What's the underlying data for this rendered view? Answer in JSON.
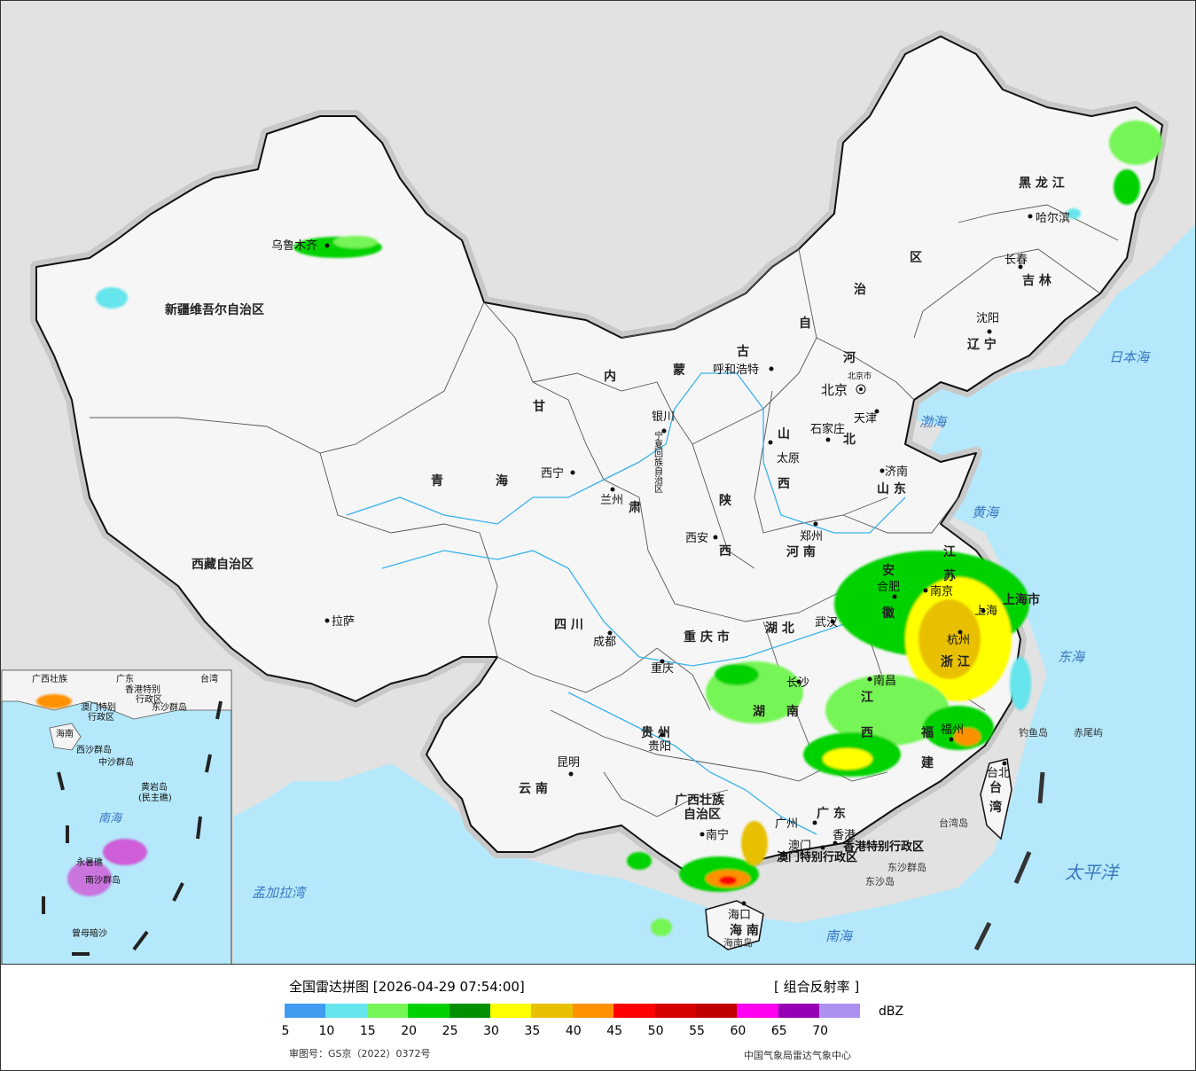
{
  "legend": {
    "title": "全国雷达拼图 [2026-04-29 07:54:00]",
    "product": "[ 组合反射率 ]",
    "unit": "dBZ",
    "approval": "审图号：GS京（2022）0372号",
    "source": "中国气象局雷达气象中心",
    "colors": [
      "#3f9cf0",
      "#66e5ec",
      "#76f556",
      "#00d200",
      "#009000",
      "#ffff00",
      "#e8c000",
      "#ff9000",
      "#ff0000",
      "#d70000",
      "#c00000",
      "#ff00f0",
      "#9600b4",
      "#ad90f0"
    ],
    "ticks": [
      "5",
      "10",
      "15",
      "20",
      "25",
      "30",
      "35",
      "40",
      "45",
      "50",
      "55",
      "60",
      "65",
      "70"
    ]
  },
  "map": {
    "provinces": {
      "xinjiang": "新疆维吾尔自治区",
      "xizang": "西藏自治区",
      "qinghai_1": "青",
      "qinghai_2": "海",
      "gansu_1": "甘",
      "gansu_2": "肃",
      "neimenggu_1": "内",
      "neimenggu_2": "蒙",
      "neimenggu_3": "古",
      "neimenggu_4": "自",
      "neimenggu_5": "治",
      "neimenggu_6": "区",
      "heilongjiang": "黑 龙 江",
      "jilin": "吉 林",
      "liaoning": "辽 宁",
      "hebei_1": "河",
      "hebei_2": "北",
      "shanxi_1": "山",
      "shanxi_2": "西",
      "shandong": "山 东",
      "henan": "河 南",
      "shaanxi_1": "陕",
      "shaanxi_2": "西",
      "sichuan": "四 川",
      "chongqing": "重 庆 市",
      "hubei": "湖 北",
      "hunan_1": "湖",
      "hunan_2": "南",
      "jiangxi_1": "江",
      "jiangxi_2": "西",
      "anhui_1": "安",
      "anhui_2": "徽",
      "jiangsu_1": "江",
      "jiangsu_2": "苏",
      "zhejiang": "浙 江",
      "fujian_1": "福",
      "fujian_2": "建",
      "guizhou": "贵 州",
      "yunnan": "云 南",
      "guangxi_1": "广西壮族",
      "guangxi_2": "自治区",
      "guangdong": "广 东",
      "hainan": "海 南",
      "taiwan_1": "台",
      "taiwan_2": "湾",
      "shanghai": "上海市",
      "ningxia": "宁夏回族自治区",
      "hongkong": "香港特别行政区",
      "macau": "澳门特别行政区"
    },
    "cities": {
      "urumqi": "乌鲁木齐",
      "lhasa": "拉萨",
      "xining": "西宁",
      "lanzhou": "兰州",
      "yinchuan": "银川",
      "hohhot": "呼和浩特",
      "beijing": "北京",
      "beijing_small": "北京市",
      "tianjin": "天津",
      "shijiazhuang": "石家庄",
      "taiyuan": "太原",
      "jinan": "济南",
      "zhengzhou": "郑州",
      "xian": "西安",
      "chengdu": "成都",
      "chongqing": "重庆",
      "wuhan": "武汉",
      "changsha": "长沙",
      "nanchang": "南昌",
      "hefei": "合肥",
      "nanjing": "南京",
      "shanghai": "上海",
      "hangzhou": "杭州",
      "fuzhou": "福州",
      "guiyang": "贵阳",
      "kunming": "昆明",
      "nanning": "南宁",
      "guangzhou": "广州",
      "macau": "澳门",
      "hongkong": "香港",
      "haikou": "海口",
      "taibei": "台北",
      "harbin": "哈尔滨",
      "changchun": "长春",
      "shenyang": "沈阳"
    },
    "seas": {
      "japan": "日本海",
      "bohai": "渤海",
      "huanghai": "黄海",
      "donghai": "东海",
      "taipingyang": "太平洋",
      "nanhai": "南海",
      "bengal": "孟加拉湾"
    },
    "islands": {
      "diaoyu": "钓鱼岛",
      "chiwei": "赤尾屿",
      "taiwan_dao": "台湾岛",
      "dongsha_qd": "东沙群岛",
      "dongsha_d": "东沙岛",
      "hainan_dao": "海南岛"
    },
    "inset": {
      "guangxi": "广西壮族",
      "guangdong": "广东",
      "taiwan": "台湾",
      "hk": "香港特别",
      "macau": "澳门特别",
      "xzq": "行政区",
      "xzq2": "行政区",
      "hainan": "海南",
      "dongsha": "东沙群岛",
      "xisha": "西沙群岛",
      "zhongsha": "中沙群岛",
      "huangyan": "黄岩岛",
      "minzhu": "(民主礁)",
      "nanhai": "南海",
      "yongshu": "永暑礁",
      "nansha": "南沙群岛",
      "zengmu": "曾母暗沙"
    }
  }
}
